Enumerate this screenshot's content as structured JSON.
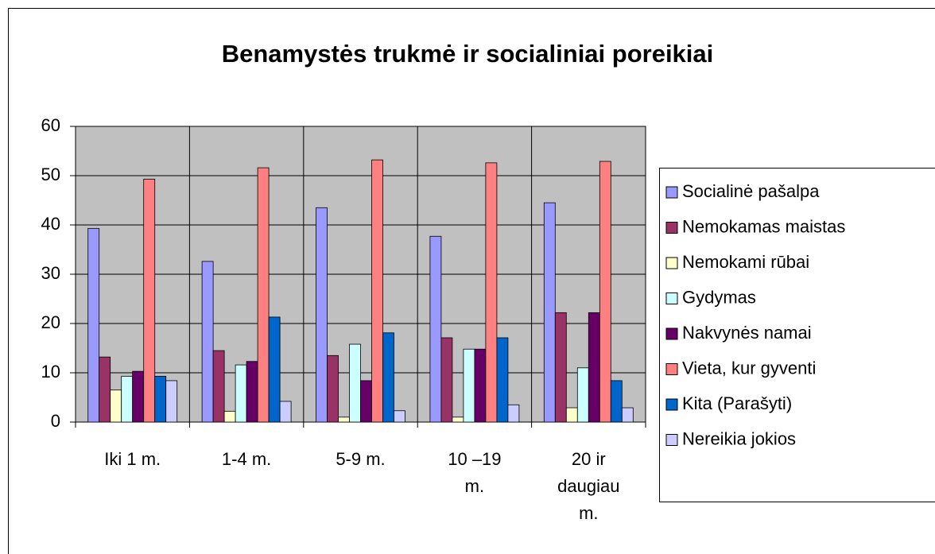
{
  "chart_data": {
    "type": "bar",
    "title": "Benamystės trukmė ir socialiniai poreikiai",
    "categories": [
      "Iki 1 m.",
      "1-4 m.",
      "5-9 m.",
      "10 –19 m.",
      "20 ir daugiau m."
    ],
    "series": [
      {
        "name": "Socialinė pašalpa",
        "color": "#9999ff",
        "values": [
          39.3,
          32.6,
          43.5,
          37.7,
          44.5
        ]
      },
      {
        "name": "Nemokamas maistas",
        "color": "#993366",
        "values": [
          13.2,
          14.5,
          13.5,
          17.1,
          22.2
        ]
      },
      {
        "name": "Nemokami rūbai",
        "color": "#ffffcc",
        "values": [
          6.5,
          2.2,
          1.0,
          1.0,
          2.9
        ]
      },
      {
        "name": "Gydymas",
        "color": "#ccffff",
        "values": [
          9.3,
          11.6,
          15.8,
          14.8,
          11.0
        ]
      },
      {
        "name": "Nakvynės namai",
        "color": "#660066",
        "values": [
          10.3,
          12.3,
          8.4,
          14.8,
          22.2
        ]
      },
      {
        "name": "Vieta, kur gyventi",
        "color": "#ff8080",
        "values": [
          49.3,
          51.6,
          53.2,
          52.6,
          52.9
        ]
      },
      {
        "name": "Kita (Parašyti)",
        "color": "#0066cc",
        "values": [
          9.3,
          21.3,
          18.1,
          17.1,
          8.4
        ]
      },
      {
        "name": "Nereikia jokios",
        "color": "#ccccff",
        "values": [
          8.4,
          4.2,
          2.3,
          3.5,
          2.9
        ]
      }
    ],
    "ylim": [
      0,
      60
    ],
    "yticks": [
      0,
      10,
      20,
      30,
      40,
      50,
      60
    ],
    "grid": true,
    "legend": "right"
  }
}
